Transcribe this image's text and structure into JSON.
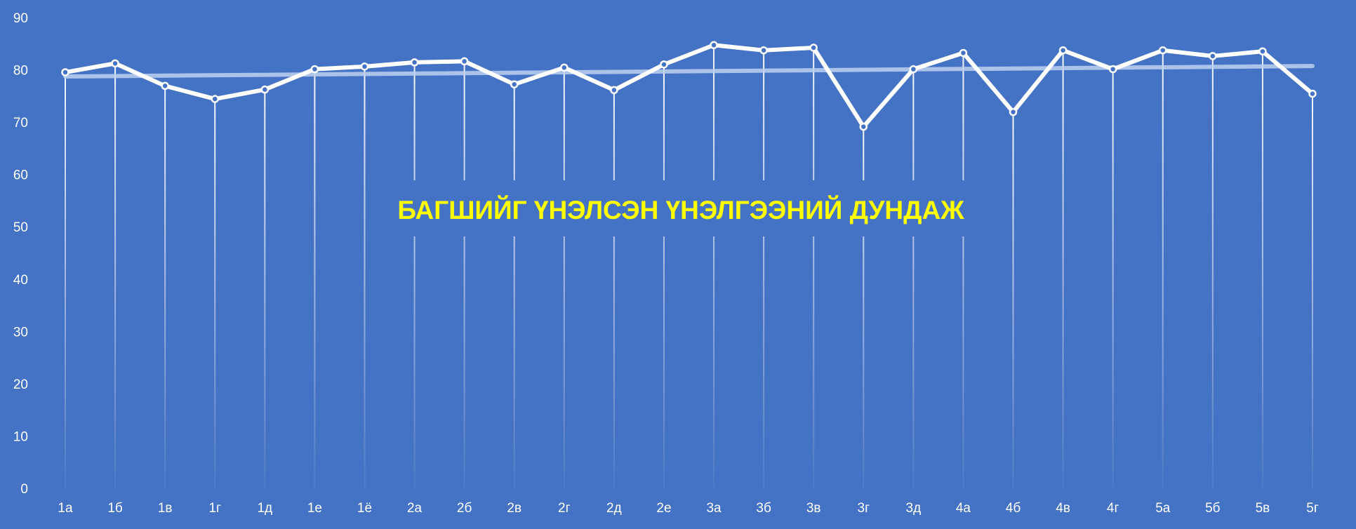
{
  "chart_data": {
    "type": "line",
    "title": "БАГШИЙГ ҮНЭЛСЭН ҮНЭЛГЭЭНИЙ ДУНДАЖ",
    "xlabel": "",
    "ylabel": "",
    "ylim": [
      0,
      90
    ],
    "yticks": [
      0,
      10,
      20,
      30,
      40,
      50,
      60,
      70,
      80,
      90
    ],
    "categories": [
      "1а",
      "1б",
      "1в",
      "1г",
      "1д",
      "1е",
      "1ё",
      "2а",
      "2б",
      "2в",
      "2г",
      "2д",
      "2е",
      "3а",
      "3б",
      "3в",
      "3г",
      "3д",
      "4а",
      "4б",
      "4в",
      "4г",
      "5а",
      "5б",
      "5в",
      "5г"
    ],
    "series": [
      {
        "values": [
          79.8,
          81.5,
          77.2,
          74.7,
          76.5,
          80.4,
          80.9,
          81.7,
          81.9,
          77.5,
          80.7,
          76.4,
          81.3,
          85.0,
          84.0,
          84.5,
          69.4,
          80.4,
          83.5,
          72.2,
          84.0,
          80.4,
          84.0,
          82.9,
          83.8,
          75.7
        ]
      }
    ],
    "trendline": {
      "start": 79.0,
      "end": 81.0
    },
    "drop_lines": true,
    "grid": false,
    "legend": "none",
    "colors": {
      "background": "#4472C4",
      "line": "#FFFFFF",
      "trendline": "#BDD0F0",
      "title": "#FFFF00",
      "text": "#FFFFFF"
    }
  }
}
